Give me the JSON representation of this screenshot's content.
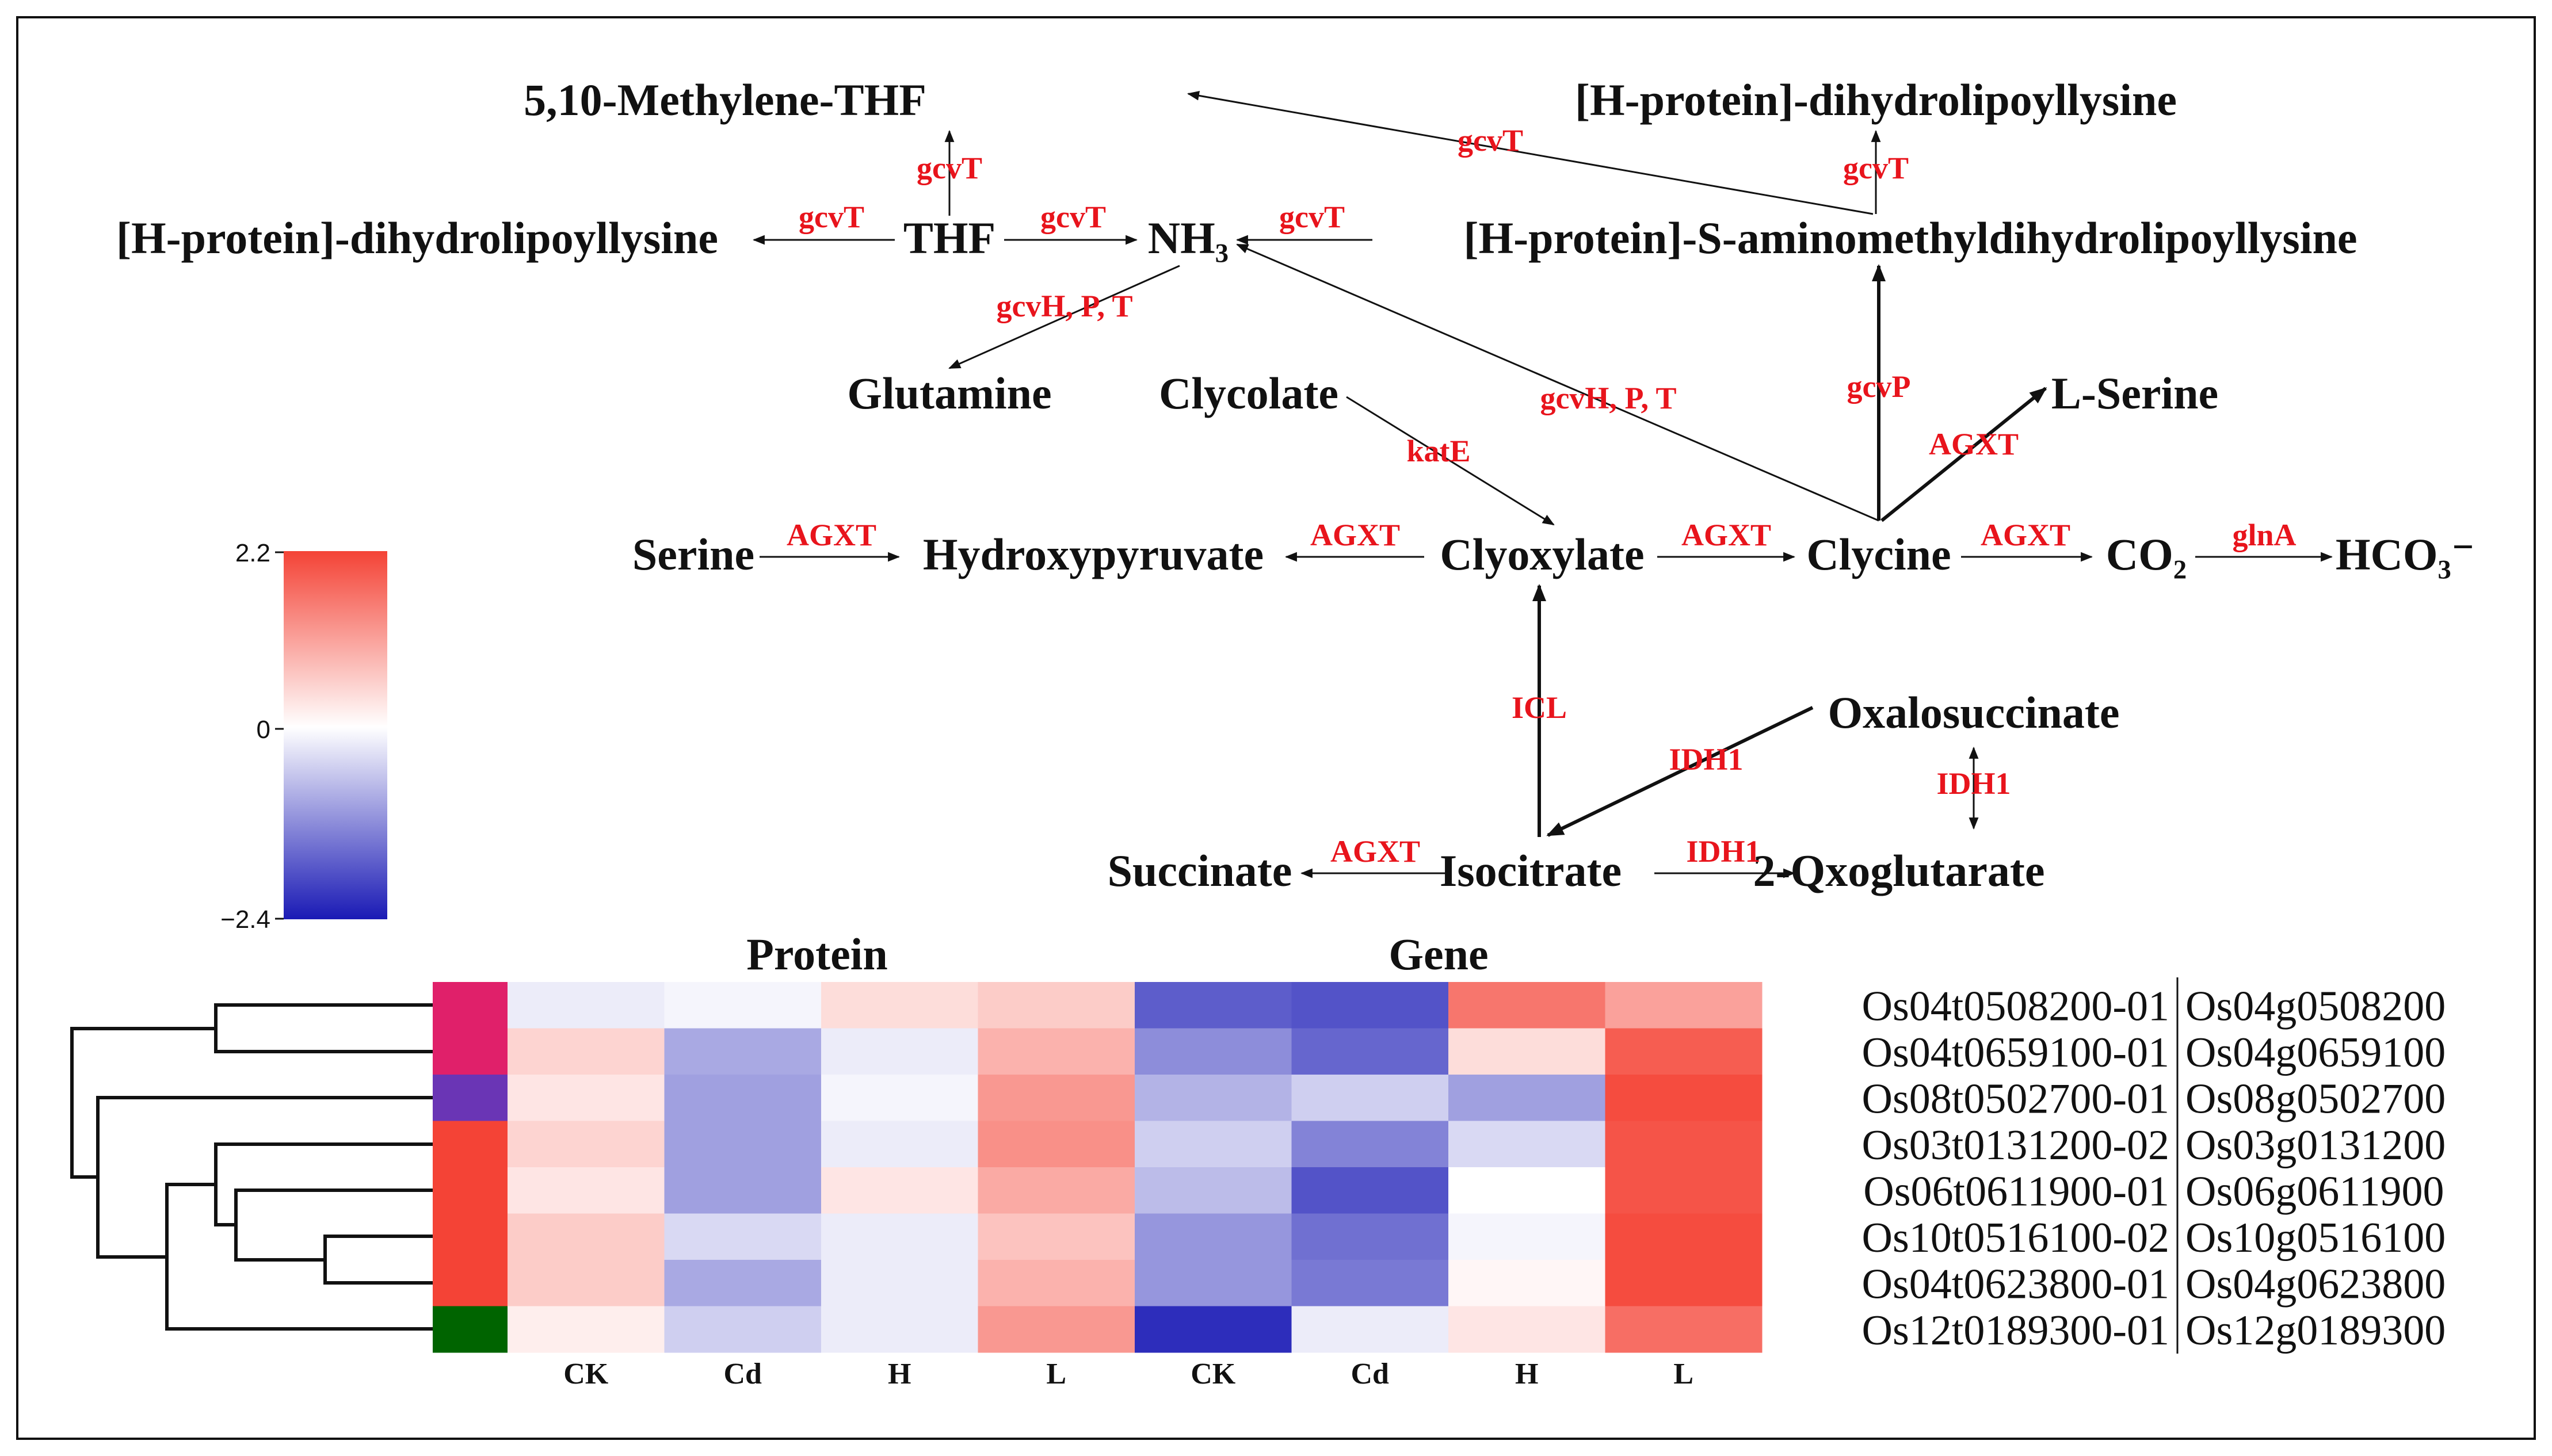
{
  "pathway": {
    "nodes": {
      "methylene_thf": "5,10-Methylene-THF",
      "hprotein_dihydro_top": "[H-protein]-dihydrolipoyllysine",
      "hprotein_dihydro_left": "[H-protein]-dihydrolipoyllysine",
      "thf": "THF",
      "nh3": "NH₃",
      "hprotein_s_amino": "[H-protein]-S-aminomethyldihydrolipoyllysine",
      "glutamine": "Glutamine",
      "clycolate": "Clycolate",
      "l_serine": "L-Serine",
      "serine": "Serine",
      "hydroxypyruvate": "Hydroxypyruvate",
      "clyoxylate": "Clyoxylate",
      "clycine": "Clycine",
      "co2": "CO₂",
      "hco3": "HCO₃⁻",
      "oxalosuccinate": "Oxalosuccinate",
      "succinate": "Succinate",
      "isocitrate": "Isocitrate",
      "qxoglutarate": "2-Qxoglutarate"
    },
    "enzymes": {
      "gcvT_thf_up": "gcvT",
      "gcvT_top_cross": "gcvT",
      "gcvT_right_up": "gcvT",
      "gcvT_thf_left": "gcvT",
      "gcvT_thf_nh3": "gcvT",
      "gcvT_hs_nh3": "gcvT",
      "gcvHPT_glutamine": "gcvH, P, T",
      "gcvHPT_clycine": "gcvH, P, T",
      "gcvP": "gcvP",
      "katE": "katE",
      "AGXT_lserine": "AGXT",
      "AGXT_serine": "AGXT",
      "AGXT_hydroxy": "AGXT",
      "AGXT_clyoxylate": "AGXT",
      "AGXT_co2": "AGXT",
      "glnA": "glnA",
      "ICL": "ICL",
      "IDH1_oxalo": "IDH1",
      "IDH1_vertical": "IDH1",
      "AGXT_succinate": "AGXT",
      "IDH1_qxo": "IDH1"
    }
  },
  "colorbar": {
    "max_label": "2.2",
    "mid_label": "0",
    "min_label": "−2.4",
    "max": 2.2,
    "mid": 0,
    "min": -2.4,
    "colors": {
      "high": "#f44336",
      "mid": "#ffffff",
      "low": "#1a1ab5"
    }
  },
  "heatmap": {
    "group_labels": {
      "protein": "Protein",
      "gene": "Gene"
    },
    "columns": [
      "CK",
      "Cd",
      "H",
      "L",
      "CK",
      "Cd",
      "H",
      "L"
    ],
    "rows": [
      {
        "id": "Os04t0508200-01",
        "gene": "Os04g0508200",
        "cluster_color": "#e0206a",
        "values": [
          -0.2,
          -0.1,
          0.4,
          0.6,
          -1.7,
          -1.8,
          1.6,
          1.1
        ]
      },
      {
        "id": "Os04t0659100-01",
        "gene": "Os04g0659100",
        "cluster_color": "#e0206a",
        "values": [
          0.5,
          -0.9,
          -0.2,
          0.9,
          -1.2,
          -1.6,
          0.4,
          1.9
        ]
      },
      {
        "id": "Os08t0502700-01",
        "gene": "Os08g0502700",
        "cluster_color": "#6a35b5",
        "values": [
          0.3,
          -1.0,
          -0.1,
          1.2,
          -0.8,
          -0.5,
          -1.0,
          2.1
        ]
      },
      {
        "id": "Os03t0131200-02",
        "gene": "Os03g0131200",
        "cluster_color": "#f44336",
        "values": [
          0.5,
          -1.0,
          -0.2,
          1.3,
          -0.5,
          -1.3,
          -0.4,
          2.0
        ]
      },
      {
        "id": "Os06t0611900-01",
        "gene": "Os06g0611900",
        "cluster_color": "#f44336",
        "values": [
          0.3,
          -1.0,
          0.3,
          1.0,
          -0.7,
          -1.8,
          0.0,
          2.0
        ]
      },
      {
        "id": "Os10t0516100-02",
        "gene": "Os10g0516100",
        "cluster_color": "#f44336",
        "values": [
          0.6,
          -0.4,
          -0.2,
          0.7,
          -1.1,
          -1.5,
          -0.1,
          2.1
        ]
      },
      {
        "id": "Os04t0623800-01",
        "gene": "Os04g0623800",
        "cluster_color": "#f44336",
        "values": [
          0.6,
          -0.9,
          -0.2,
          0.9,
          -1.1,
          -1.4,
          0.1,
          2.1
        ]
      },
      {
        "id": "Os12t0189300-01",
        "gene": "Os12g0189300",
        "cluster_color": "#006400",
        "values": [
          0.2,
          -0.5,
          -0.2,
          1.2,
          -2.2,
          -0.2,
          0.3,
          1.7
        ]
      }
    ]
  }
}
